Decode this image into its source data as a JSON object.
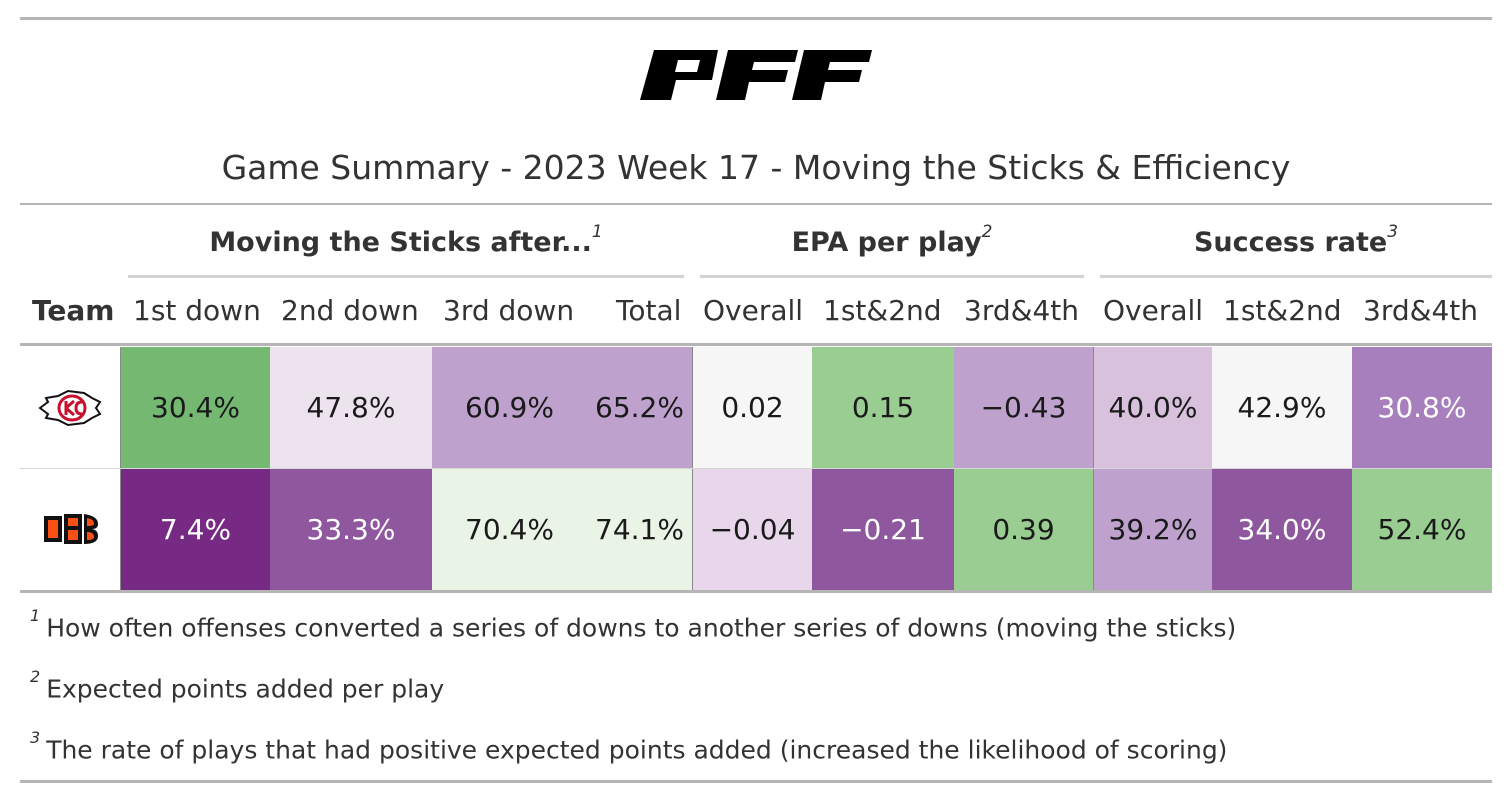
{
  "logo": {
    "brand": "PFF",
    "icon": "pff-wordmark-icon"
  },
  "title": "Game Summary - 2023 Week 17 - Moving the Sticks & Efficiency",
  "spanners": [
    {
      "label": "Moving the Sticks after...",
      "mark": "1"
    },
    {
      "label": "EPA per play",
      "mark": "2"
    },
    {
      "label": "Success rate",
      "mark": "3"
    }
  ],
  "columns": {
    "team": "Team",
    "mts_1st": "1st down",
    "mts_2nd": "2nd down",
    "mts_3rd": "3rd down",
    "mts_total": "Total",
    "epa_overall": "Overall",
    "epa_12": "1st&2nd",
    "epa_34": "3rd&4th",
    "sr_overall": "Overall",
    "sr_12": "1st&2nd",
    "sr_34": "3rd&4th"
  },
  "rows": [
    {
      "team_icon": "kansas-city-chiefs-logo-icon",
      "cells": [
        {
          "text": "30.4%",
          "bg": "#74b872",
          "light": false
        },
        {
          "text": "47.8%",
          "bg": "#ede3ee",
          "light": false
        },
        {
          "text": "60.9%",
          "bg": "#bea1cc",
          "light": false
        },
        {
          "text": "65.2%",
          "bg": "#bea1cc",
          "light": false
        },
        {
          "text": "0.02",
          "bg": "#f6f6f6",
          "light": false
        },
        {
          "text": "0.15",
          "bg": "#9acd92",
          "light": false
        },
        {
          "text": "−0.43",
          "bg": "#bea1cc",
          "light": false
        },
        {
          "text": "40.0%",
          "bg": "#d8c1dd",
          "light": false
        },
        {
          "text": "42.9%",
          "bg": "#f6f6f6",
          "light": false
        },
        {
          "text": "30.8%",
          "bg": "#a87fbd",
          "light": true
        }
      ]
    },
    {
      "team_icon": "cincinnati-bengals-logo-icon",
      "cells": [
        {
          "text": "7.4%",
          "bg": "#762a83",
          "light": true
        },
        {
          "text": "33.3%",
          "bg": "#8e579e",
          "light": true
        },
        {
          "text": "70.4%",
          "bg": "#e9f3e6",
          "light": false
        },
        {
          "text": "74.1%",
          "bg": "#e9f3e6",
          "light": false
        },
        {
          "text": "−0.04",
          "bg": "#e8d6ea",
          "light": false
        },
        {
          "text": "−0.21",
          "bg": "#8e579e",
          "light": true
        },
        {
          "text": "0.39",
          "bg": "#9acd92",
          "light": false
        },
        {
          "text": "39.2%",
          "bg": "#bea1cc",
          "light": false
        },
        {
          "text": "34.0%",
          "bg": "#8e579e",
          "light": true
        },
        {
          "text": "52.4%",
          "bg": "#9acd92",
          "light": false
        }
      ]
    }
  ],
  "footnotes": [
    {
      "mark": "1",
      "text": "How often offenses converted a series of downs to another series of downs (moving the sticks)"
    },
    {
      "mark": "2",
      "text": "Expected points added per play"
    },
    {
      "mark": "3",
      "text": "The rate of plays that had positive expected points added (increased the likelihood of scoring)"
    }
  ]
}
